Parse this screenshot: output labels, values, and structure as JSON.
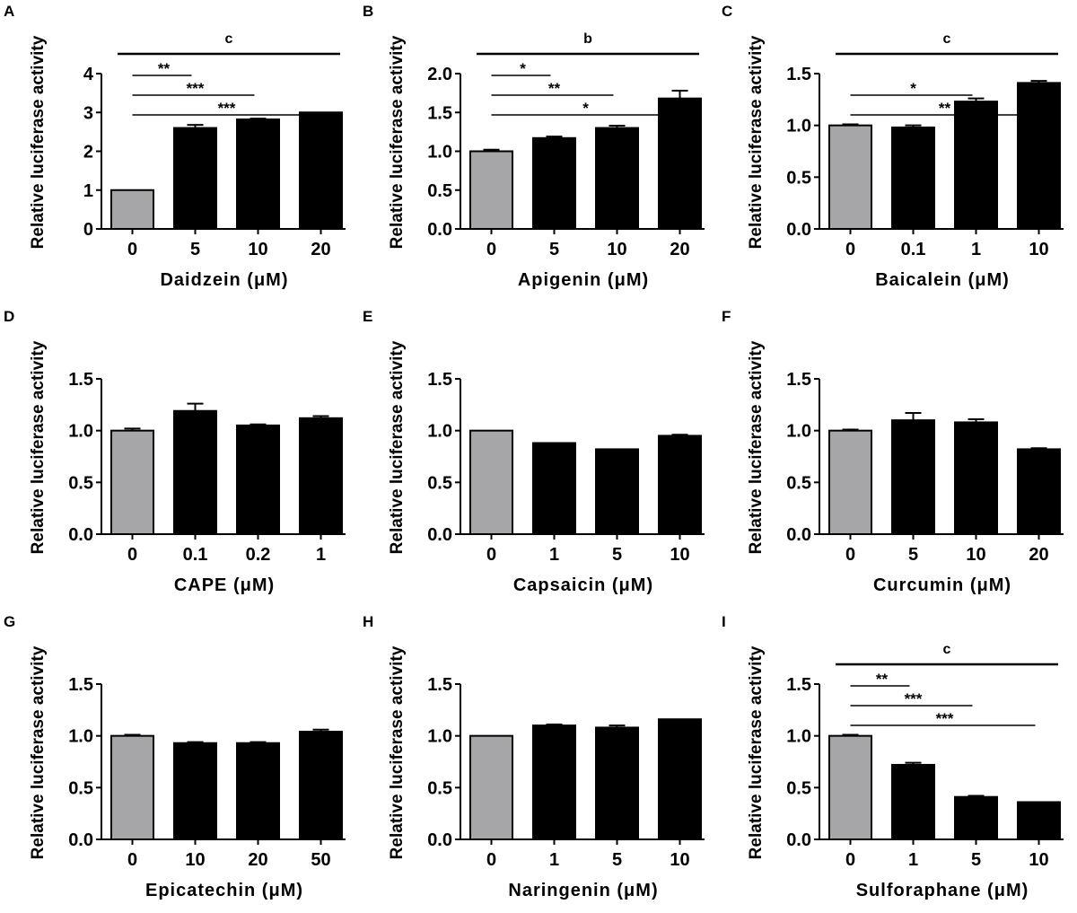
{
  "colors": {
    "control": "#a6a6a8",
    "treatment": "#000000",
    "axis": "#000000"
  },
  "chart_data": [
    {
      "type": "bar",
      "panel": "A",
      "xlabel": "Daidzein (μM)",
      "ylabel": "Relative luciferase activity",
      "categories": [
        "0",
        "5",
        "10",
        "20"
      ],
      "values": [
        1.0,
        2.6,
        2.82,
        3.0
      ],
      "errors": [
        0.0,
        0.08,
        0.02,
        0.0
      ],
      "ylim": [
        0,
        4
      ],
      "yticks": [
        "0",
        "1",
        "2",
        "3",
        "4"
      ],
      "overall": "c",
      "comparisons": [
        {
          "from": 0,
          "to": 1,
          "label": "**"
        },
        {
          "from": 0,
          "to": 2,
          "label": "***"
        },
        {
          "from": 0,
          "to": 3,
          "label": "***"
        }
      ]
    },
    {
      "type": "bar",
      "panel": "B",
      "xlabel": "Apigenin (μM)",
      "ylabel": "Relative luciferase activity",
      "categories": [
        "0",
        "5",
        "10",
        "20"
      ],
      "values": [
        1.0,
        1.17,
        1.3,
        1.68
      ],
      "errors": [
        0.02,
        0.02,
        0.03,
        0.1
      ],
      "ylim": [
        0,
        2
      ],
      "yticks": [
        "0.0",
        "0.5",
        "1.0",
        "1.5",
        "2.0"
      ],
      "overall": "b",
      "comparisons": [
        {
          "from": 0,
          "to": 1,
          "label": "*"
        },
        {
          "from": 0,
          "to": 2,
          "label": "**"
        },
        {
          "from": 0,
          "to": 3,
          "label": "*"
        }
      ]
    },
    {
      "type": "bar",
      "panel": "C",
      "xlabel": "Baicalein (μM)",
      "ylabel": "Relative luciferase activity",
      "categories": [
        "0",
        "0.1",
        "1",
        "10"
      ],
      "values": [
        1.0,
        0.98,
        1.23,
        1.41
      ],
      "errors": [
        0.01,
        0.02,
        0.03,
        0.02
      ],
      "ylim": [
        0,
        1.5
      ],
      "yticks": [
        "0.0",
        "0.5",
        "1.0",
        "1.5"
      ],
      "overall": "c",
      "comparisons": [
        {
          "from": 0,
          "to": 2,
          "label": "*"
        },
        {
          "from": 0,
          "to": 3,
          "label": "**"
        }
      ]
    },
    {
      "type": "bar",
      "panel": "D",
      "xlabel": "CAPE (μM)",
      "ylabel": "Relative luciferase activity",
      "categories": [
        "0",
        "0.1",
        "0.2",
        "1"
      ],
      "values": [
        1.0,
        1.19,
        1.05,
        1.12
      ],
      "errors": [
        0.02,
        0.07,
        0.01,
        0.02
      ],
      "ylim": [
        0,
        1.5
      ],
      "yticks": [
        "0.0",
        "0.5",
        "1.0",
        "1.5"
      ],
      "overall": "",
      "comparisons": []
    },
    {
      "type": "bar",
      "panel": "E",
      "xlabel": "Capsaicin (μM)",
      "ylabel": "Relative luciferase activity",
      "categories": [
        "0",
        "1",
        "5",
        "10"
      ],
      "values": [
        1.0,
        0.88,
        0.82,
        0.95
      ],
      "errors": [
        0.0,
        0.0,
        0.0,
        0.01
      ],
      "ylim": [
        0,
        1.5
      ],
      "yticks": [
        "0.0",
        "0.5",
        "1.0",
        "1.5"
      ],
      "overall": "",
      "comparisons": []
    },
    {
      "type": "bar",
      "panel": "F",
      "xlabel": "Curcumin (μM)",
      "ylabel": "Relative luciferase activity",
      "categories": [
        "0",
        "5",
        "10",
        "20"
      ],
      "values": [
        1.0,
        1.1,
        1.08,
        0.82
      ],
      "errors": [
        0.01,
        0.07,
        0.03,
        0.01
      ],
      "ylim": [
        0,
        1.5
      ],
      "yticks": [
        "0.0",
        "0.5",
        "1.0",
        "1.5"
      ],
      "overall": "",
      "comparisons": []
    },
    {
      "type": "bar",
      "panel": "G",
      "xlabel": "Epicatechin (μM)",
      "ylabel": "Relative luciferase activity",
      "categories": [
        "0",
        "10",
        "20",
        "50"
      ],
      "values": [
        1.0,
        0.93,
        0.93,
        1.04
      ],
      "errors": [
        0.01,
        0.01,
        0.01,
        0.02
      ],
      "ylim": [
        0,
        1.5
      ],
      "yticks": [
        "0.0",
        "0.5",
        "1.0",
        "1.5"
      ],
      "overall": "",
      "comparisons": []
    },
    {
      "type": "bar",
      "panel": "H",
      "xlabel": "Naringenin (μM)",
      "ylabel": "Relative luciferase activity",
      "categories": [
        "0",
        "1",
        "5",
        "10"
      ],
      "values": [
        1.0,
        1.1,
        1.08,
        1.16
      ],
      "errors": [
        0.0,
        0.01,
        0.02,
        0.0
      ],
      "ylim": [
        0,
        1.5
      ],
      "yticks": [
        "0.0",
        "0.5",
        "1.0",
        "1.5"
      ],
      "overall": "",
      "comparisons": []
    },
    {
      "type": "bar",
      "panel": "I",
      "xlabel": "Sulforaphane (μM)",
      "ylabel": "Relative luciferase activity",
      "categories": [
        "0",
        "1",
        "5",
        "10"
      ],
      "values": [
        1.0,
        0.72,
        0.41,
        0.36
      ],
      "errors": [
        0.01,
        0.02,
        0.01,
        0.0
      ],
      "ylim": [
        0,
        1.5
      ],
      "yticks": [
        "0.0",
        "0.5",
        "1.0",
        "1.5"
      ],
      "overall": "c",
      "comparisons": [
        {
          "from": 0,
          "to": 1,
          "label": "**"
        },
        {
          "from": 0,
          "to": 2,
          "label": "***"
        },
        {
          "from": 0,
          "to": 3,
          "label": "***"
        }
      ]
    }
  ]
}
